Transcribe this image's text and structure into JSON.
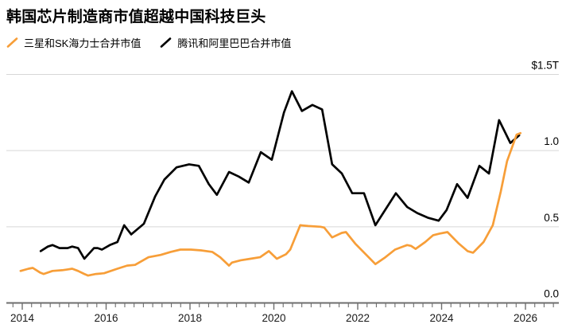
{
  "header": {
    "title": "韩国芯片制造商市值超越中国科技巨头"
  },
  "legend": {
    "items": [
      {
        "label": "三星和SK海力士合并市值",
        "color": "#F79E38"
      },
      {
        "label": "腾讯和阿里巴巴合并市值",
        "color": "#000000"
      }
    ]
  },
  "chart_data": {
    "type": "line",
    "title": "韩国芯片制造商市值超越中国科技巨头",
    "unit": "USD trillions",
    "grid": "horizontal",
    "legend_position": "top-left",
    "x_axis": {
      "min": 2013.9,
      "max": 2026.8,
      "major_ticks": [
        2014,
        2016,
        2018,
        2020,
        2022,
        2024,
        2026
      ],
      "tick_labels": [
        "2014",
        "2016",
        "2018",
        "2020",
        "2022",
        "2024",
        "2026"
      ],
      "minor_intervals_per_major": 9
    },
    "y_axis": {
      "min": 0.0,
      "max": 1.5,
      "ticks": [
        {
          "value": 1.5,
          "label": "$1.5T"
        },
        {
          "value": 1.0,
          "label": "1.0"
        },
        {
          "value": 0.5,
          "label": "0.5"
        },
        {
          "value": 0.0,
          "label": "0.0"
        }
      ]
    },
    "colors": {
      "gridline": "#d7d7d7",
      "axis": "#6e6e6e",
      "tick_label": "#1a1a1a"
    },
    "series": [
      {
        "name": "腾讯和阿里巴巴合并市值",
        "color": "#000000",
        "points": [
          [
            2014.44,
            0.34
          ],
          [
            2014.61,
            0.37
          ],
          [
            2014.72,
            0.38
          ],
          [
            2014.89,
            0.36
          ],
          [
            2015.08,
            0.36
          ],
          [
            2015.19,
            0.37
          ],
          [
            2015.33,
            0.36
          ],
          [
            2015.48,
            0.29
          ],
          [
            2015.71,
            0.36
          ],
          [
            2015.8,
            0.36
          ],
          [
            2015.9,
            0.35
          ],
          [
            2016.09,
            0.38
          ],
          [
            2016.27,
            0.4
          ],
          [
            2016.43,
            0.51
          ],
          [
            2016.6,
            0.45
          ],
          [
            2016.9,
            0.52
          ],
          [
            2017.17,
            0.7
          ],
          [
            2017.39,
            0.81
          ],
          [
            2017.68,
            0.89
          ],
          [
            2017.98,
            0.91
          ],
          [
            2018.21,
            0.9
          ],
          [
            2018.45,
            0.78
          ],
          [
            2018.64,
            0.71
          ],
          [
            2018.93,
            0.86
          ],
          [
            2019.16,
            0.83
          ],
          [
            2019.4,
            0.79
          ],
          [
            2019.69,
            0.99
          ],
          [
            2019.95,
            0.94
          ],
          [
            2020.24,
            1.25
          ],
          [
            2020.43,
            1.39
          ],
          [
            2020.67,
            1.26
          ],
          [
            2020.92,
            1.3
          ],
          [
            2021.15,
            1.27
          ],
          [
            2021.39,
            0.91
          ],
          [
            2021.62,
            0.85
          ],
          [
            2021.87,
            0.72
          ],
          [
            2022.15,
            0.72
          ],
          [
            2022.42,
            0.51
          ],
          [
            2022.91,
            0.72
          ],
          [
            2023.18,
            0.63
          ],
          [
            2023.42,
            0.59
          ],
          [
            2023.67,
            0.56
          ],
          [
            2023.93,
            0.54
          ],
          [
            2024.12,
            0.61
          ],
          [
            2024.37,
            0.78
          ],
          [
            2024.62,
            0.69
          ],
          [
            2024.9,
            0.9
          ],
          [
            2025.13,
            0.85
          ],
          [
            2025.37,
            1.2
          ],
          [
            2025.64,
            1.05
          ],
          [
            2025.85,
            1.1
          ]
        ]
      },
      {
        "name": "三星和SK海力士合并市值",
        "color": "#F79E38",
        "points": [
          [
            2013.96,
            0.21
          ],
          [
            2014.15,
            0.225
          ],
          [
            2014.25,
            0.23
          ],
          [
            2014.42,
            0.2
          ],
          [
            2014.51,
            0.19
          ],
          [
            2014.72,
            0.21
          ],
          [
            2014.95,
            0.215
          ],
          [
            2015.08,
            0.22
          ],
          [
            2015.19,
            0.225
          ],
          [
            2015.33,
            0.21
          ],
          [
            2015.48,
            0.19
          ],
          [
            2015.57,
            0.18
          ],
          [
            2015.76,
            0.19
          ],
          [
            2015.95,
            0.195
          ],
          [
            2016.27,
            0.225
          ],
          [
            2016.5,
            0.245
          ],
          [
            2016.69,
            0.25
          ],
          [
            2017.01,
            0.3
          ],
          [
            2017.3,
            0.315
          ],
          [
            2017.54,
            0.335
          ],
          [
            2017.77,
            0.35
          ],
          [
            2018.02,
            0.35
          ],
          [
            2018.27,
            0.345
          ],
          [
            2018.53,
            0.335
          ],
          [
            2018.72,
            0.3
          ],
          [
            2018.93,
            0.245
          ],
          [
            2019.0,
            0.265
          ],
          [
            2019.21,
            0.28
          ],
          [
            2019.44,
            0.29
          ],
          [
            2019.67,
            0.3
          ],
          [
            2019.88,
            0.34
          ],
          [
            2020.07,
            0.29
          ],
          [
            2020.29,
            0.32
          ],
          [
            2020.39,
            0.35
          ],
          [
            2020.63,
            0.51
          ],
          [
            2020.82,
            0.505
          ],
          [
            2021.11,
            0.5
          ],
          [
            2021.2,
            0.495
          ],
          [
            2021.39,
            0.43
          ],
          [
            2021.62,
            0.46
          ],
          [
            2021.72,
            0.465
          ],
          [
            2021.94,
            0.39
          ],
          [
            2022.19,
            0.32
          ],
          [
            2022.42,
            0.255
          ],
          [
            2022.66,
            0.3
          ],
          [
            2022.89,
            0.35
          ],
          [
            2023.18,
            0.38
          ],
          [
            2023.27,
            0.375
          ],
          [
            2023.38,
            0.355
          ],
          [
            2023.61,
            0.4
          ],
          [
            2023.8,
            0.445
          ],
          [
            2023.95,
            0.455
          ],
          [
            2024.14,
            0.465
          ],
          [
            2024.41,
            0.39
          ],
          [
            2024.62,
            0.34
          ],
          [
            2024.75,
            0.33
          ],
          [
            2025.0,
            0.4
          ],
          [
            2025.22,
            0.51
          ],
          [
            2025.41,
            0.73
          ],
          [
            2025.56,
            0.93
          ],
          [
            2025.79,
            1.105
          ],
          [
            2025.88,
            1.115
          ]
        ]
      }
    ]
  }
}
